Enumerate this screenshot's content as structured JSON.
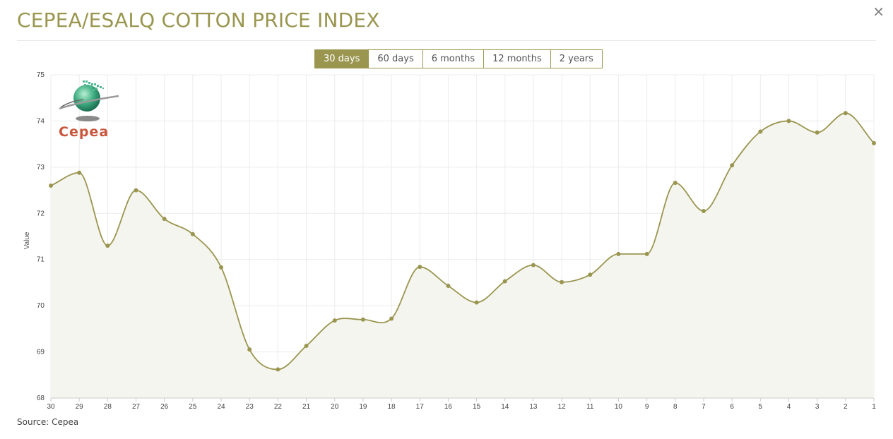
{
  "header": {
    "title": "CEPEA/ESALQ COTTON PRICE INDEX"
  },
  "close_glyph": "×",
  "range_tabs": [
    {
      "label": "30 days",
      "active": true
    },
    {
      "label": "60 days",
      "active": false
    },
    {
      "label": "6 months",
      "active": false
    },
    {
      "label": "12 months",
      "active": false
    },
    {
      "label": "2 years",
      "active": false
    }
  ],
  "logo": {
    "text": "Cepea"
  },
  "footer": {
    "source": "Source: Cepea"
  },
  "colors": {
    "accent": "#9a9650",
    "fill": "#f5f5ef",
    "grid": "#ececec"
  },
  "chart_data": {
    "type": "area",
    "title": "",
    "xlabel": "",
    "ylabel": "Value",
    "ylim": [
      68,
      75
    ],
    "yticks": [
      68,
      69,
      70,
      71,
      72,
      73,
      74,
      75
    ],
    "categories": [
      "30",
      "29",
      "28",
      "27",
      "26",
      "25",
      "24",
      "23",
      "22",
      "21",
      "20",
      "19",
      "18",
      "17",
      "16",
      "15",
      "14",
      "13",
      "12",
      "11",
      "10",
      "9",
      "8",
      "7",
      "6",
      "5",
      "4",
      "3",
      "2",
      "1"
    ],
    "series": [
      {
        "values": [
          72.6,
          72.88,
          71.3,
          72.5,
          71.88,
          71.55,
          70.83,
          69.05,
          68.62,
          69.13,
          69.68,
          69.7,
          69.72,
          70.84,
          70.43,
          70.07,
          70.53,
          70.88,
          70.51,
          70.67,
          71.12,
          71.12,
          72.66,
          72.05,
          73.04,
          73.77,
          74.0,
          73.75,
          74.17,
          73.52
        ]
      }
    ],
    "grid": true,
    "legend": "none"
  }
}
